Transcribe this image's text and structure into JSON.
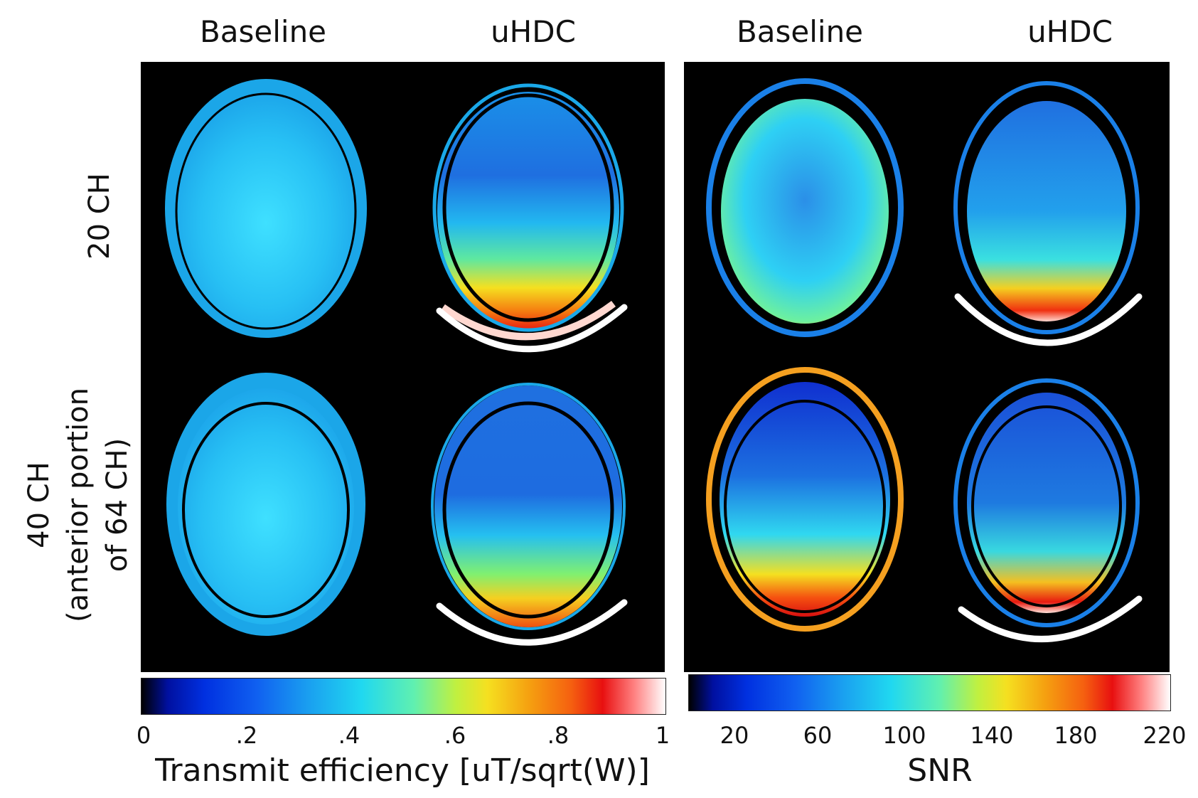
{
  "columns": [
    "Baseline",
    "uHDC",
    "Baseline",
    "uHDC"
  ],
  "rows": {
    "row1": "20 CH",
    "row2_line1": "40 CH",
    "row2_line2": "(anterior portion",
    "row2_line3": "of 64 CH)"
  },
  "colorbars": [
    {
      "title": "Transmit efficiency [uT/sqrt(W)]",
      "ticks": [
        "0",
        ".2",
        ".4",
        ".6",
        ".8",
        "1"
      ],
      "range": [
        0,
        1
      ]
    },
    {
      "title": "SNR",
      "ticks": [
        "20",
        "60",
        "100",
        "140",
        "180",
        "220"
      ],
      "range": [
        0,
        220
      ]
    }
  ],
  "colors": {
    "background": "#000000",
    "arc": "#ffffff"
  }
}
